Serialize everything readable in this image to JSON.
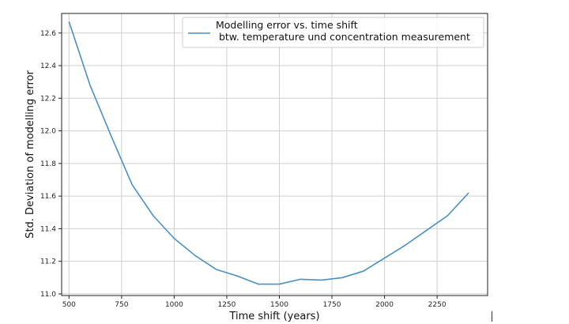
{
  "chart_data": {
    "type": "line",
    "xlabel": "Time shift (years)",
    "ylabel": "Std. Deviation of modelling error",
    "xlim": [
      465,
      2490
    ],
    "ylim": [
      10.99,
      12.72
    ],
    "xticks": [
      500,
      750,
      1000,
      1250,
      1500,
      1750,
      2000,
      2250
    ],
    "yticks": [
      11.0,
      11.2,
      11.4,
      11.6,
      11.8,
      12.0,
      12.2,
      12.4,
      12.6
    ],
    "grid": true,
    "legend_position": "top-right",
    "series": [
      {
        "name": "Modelling error vs. time shift\n btw. temperature und concentration measurement",
        "color": "#4a90c4",
        "x": [
          500,
          600,
          700,
          800,
          900,
          1000,
          1100,
          1200,
          1300,
          1400,
          1500,
          1600,
          1700,
          1800,
          1900,
          2000,
          2100,
          2200,
          2300,
          2400
        ],
        "y": [
          12.67,
          12.28,
          11.97,
          11.67,
          11.48,
          11.34,
          11.235,
          11.15,
          11.11,
          11.06,
          11.06,
          11.09,
          11.085,
          11.1,
          11.14,
          11.22,
          11.3,
          11.39,
          11.48,
          11.62
        ]
      }
    ]
  }
}
